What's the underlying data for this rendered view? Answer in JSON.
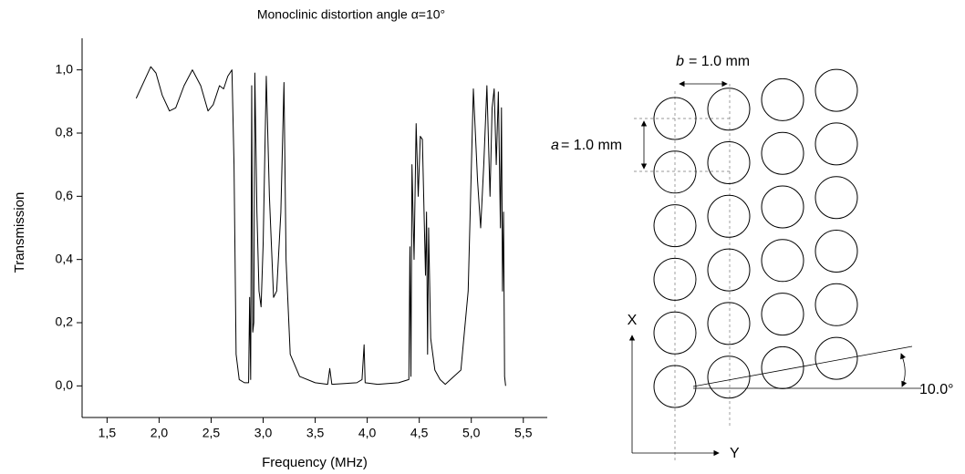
{
  "chart_data": {
    "type": "line",
    "title": "Monoclinic distortion angle α=10°",
    "x_label": "Frequency (MHz)",
    "y_label": "Transmission",
    "color": "#000000",
    "xlim": [
      1.26,
      5.73
    ],
    "ylim": [
      -0.1,
      1.1
    ],
    "xticks": [
      {
        "value": 1.5,
        "label": "1,5"
      },
      {
        "value": 2.0,
        "label": "2,0"
      },
      {
        "value": 2.5,
        "label": "2,5"
      },
      {
        "value": 3.0,
        "label": "3,0"
      },
      {
        "value": 3.5,
        "label": "3,5"
      },
      {
        "value": 4.0,
        "label": "4,0"
      },
      {
        "value": 4.5,
        "label": "4,5"
      },
      {
        "value": 5.0,
        "label": "5,0"
      },
      {
        "value": 5.5,
        "label": "5,5"
      }
    ],
    "yticks": [
      {
        "value": 0.0,
        "label": "0,0"
      },
      {
        "value": 0.2,
        "label": "0,2"
      },
      {
        "value": 0.4,
        "label": "0,4"
      },
      {
        "value": 0.6,
        "label": "0,6"
      },
      {
        "value": 0.8,
        "label": "0,8"
      },
      {
        "value": 1.0,
        "label": "1,0"
      }
    ],
    "x": [
      1.78,
      1.85,
      1.92,
      1.97,
      2.03,
      2.1,
      2.16,
      2.24,
      2.32,
      2.4,
      2.47,
      2.52,
      2.58,
      2.62,
      2.66,
      2.7,
      2.72,
      2.74,
      2.77,
      2.82,
      2.86,
      2.87,
      2.88,
      2.89,
      2.9,
      2.91,
      2.92,
      2.94,
      2.96,
      2.98,
      3.0,
      3.03,
      3.06,
      3.1,
      3.13,
      3.17,
      3.2,
      3.22,
      3.26,
      3.35,
      3.5,
      3.62,
      3.64,
      3.66,
      3.9,
      3.95,
      3.97,
      3.98,
      4.1,
      4.3,
      4.4,
      4.41,
      4.42,
      4.43,
      4.45,
      4.47,
      4.49,
      4.51,
      4.53,
      4.56,
      4.57,
      4.58,
      4.59,
      4.61,
      4.65,
      4.7,
      4.75,
      4.8,
      4.9,
      4.97,
      5.02,
      5.06,
      5.09,
      5.12,
      5.15,
      5.18,
      5.2,
      5.22,
      5.24,
      5.26,
      5.28,
      5.29,
      5.3,
      5.31,
      5.32,
      5.33
    ],
    "values": [
      0.91,
      0.96,
      1.01,
      0.99,
      0.92,
      0.87,
      0.88,
      0.95,
      1.0,
      0.95,
      0.87,
      0.89,
      0.95,
      0.94,
      0.98,
      1.0,
      0.7,
      0.1,
      0.02,
      0.01,
      0.01,
      0.28,
      0.02,
      0.95,
      0.17,
      0.2,
      0.99,
      0.55,
      0.3,
      0.25,
      0.45,
      0.98,
      0.6,
      0.28,
      0.3,
      0.55,
      0.96,
      0.4,
      0.1,
      0.03,
      0.01,
      0.005,
      0.055,
      0.005,
      0.01,
      0.02,
      0.13,
      0.01,
      0.005,
      0.01,
      0.02,
      0.44,
      0.03,
      0.7,
      0.4,
      0.83,
      0.6,
      0.79,
      0.78,
      0.35,
      0.55,
      0.1,
      0.5,
      0.15,
      0.05,
      0.02,
      0.005,
      0.02,
      0.05,
      0.3,
      0.94,
      0.65,
      0.5,
      0.7,
      0.95,
      0.6,
      0.88,
      0.94,
      0.7,
      0.93,
      0.5,
      0.88,
      0.3,
      0.55,
      0.03,
      0.0
    ]
  },
  "diagram": {
    "b_symbol": "b",
    "b_text": "= 1.0 mm",
    "a_symbol": "a",
    "a_text": "= 1.0 mm",
    "x_axis": "X",
    "y_axis": "Y",
    "angle": "10.0°"
  }
}
